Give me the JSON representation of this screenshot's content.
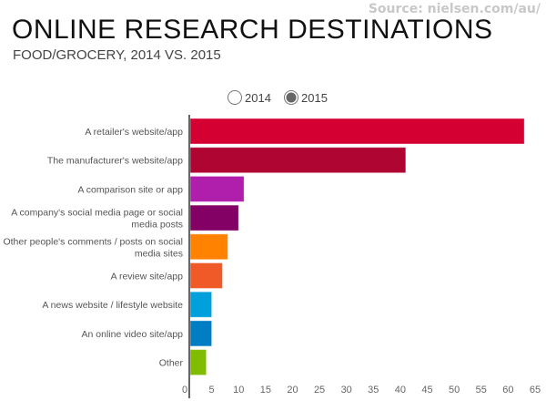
{
  "source": "Source: nielsen.com/au/",
  "chart_data": {
    "type": "bar",
    "orientation": "horizontal",
    "title": "ONLINE RESEARCH DESTINATIONS",
    "subtitle": "FOOD/GROCERY, 2014 VS. 2015",
    "legend": {
      "placement": "top",
      "options": [
        "2014",
        "2015"
      ],
      "selected": "2015"
    },
    "categories": [
      [
        "A retailer's website/app"
      ],
      [
        "The manufacturer's website/app"
      ],
      [
        "A comparison site or app"
      ],
      [
        "A company's social media page or social",
        "media posts"
      ],
      [
        "Other people's comments / posts on social",
        "media sites"
      ],
      [
        "A review site/app"
      ],
      [
        "A news website / lifestyle website"
      ],
      [
        "An online video site/app"
      ],
      [
        "Other"
      ]
    ],
    "series": [
      {
        "values": [
          63,
          41,
          11,
          10,
          8,
          7,
          5,
          5,
          4
        ]
      }
    ],
    "colors": [
      "#d50032",
      "#ae0533",
      "#b01eac",
      "#830065",
      "#ff8200",
      "#f05a28",
      "#00a0dc",
      "#007dc3",
      "#80bc00"
    ],
    "xlim": [
      0,
      65
    ],
    "xticks": [
      0,
      5,
      10,
      15,
      20,
      25,
      30,
      35,
      40,
      45,
      50,
      55,
      60,
      65
    ],
    "grid": false
  }
}
